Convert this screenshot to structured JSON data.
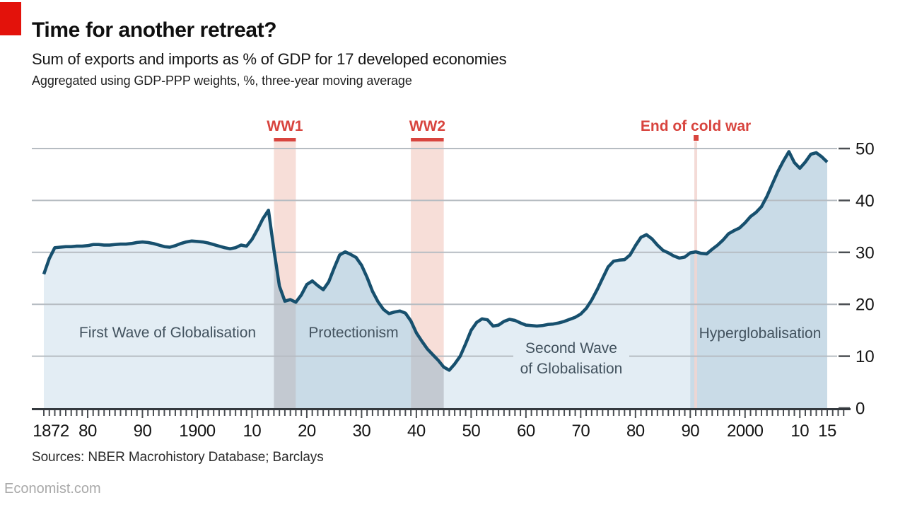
{
  "header": {
    "title": "Time for another retreat?",
    "subtitle": "Sum of exports and imports as % of GDP for 17 developed economies",
    "note": "Aggregated using GDP-PPP weights, %, three-year moving average"
  },
  "footer": {
    "sources": "Sources: NBER Macrohistory Database; Barclays",
    "brand": "Economist.com"
  },
  "chart_data": {
    "type": "area",
    "title": "Time for another retreat?",
    "subtitle": "Sum of exports and imports as % of GDP for 17 developed economies",
    "note": "Aggregated using GDP-PPP weights, %, three-year moving average",
    "xlim": [
      1872,
      2015
    ],
    "ylim": [
      0,
      50
    ],
    "grid": "horizontal",
    "yticks": [
      0,
      10,
      20,
      30,
      40,
      50
    ],
    "y_axis_side": "right",
    "xticks": [
      {
        "year": 1872,
        "label": "1872"
      },
      {
        "year": 1880,
        "label": "80"
      },
      {
        "year": 1890,
        "label": "90"
      },
      {
        "year": 1900,
        "label": "1900"
      },
      {
        "year": 1910,
        "label": "10"
      },
      {
        "year": 1920,
        "label": "20"
      },
      {
        "year": 1930,
        "label": "30"
      },
      {
        "year": 1940,
        "label": "40"
      },
      {
        "year": 1950,
        "label": "50"
      },
      {
        "year": 1960,
        "label": "60"
      },
      {
        "year": 1970,
        "label": "70"
      },
      {
        "year": 1980,
        "label": "80"
      },
      {
        "year": 1990,
        "label": "90"
      },
      {
        "year": 2000,
        "label": "2000"
      },
      {
        "year": 2010,
        "label": "10"
      },
      {
        "year": 2015,
        "label": "15"
      }
    ],
    "series": [
      {
        "name": "Sum of exports and imports as % of GDP (3-year moving average)",
        "start_year": 1872,
        "step": 1,
        "values": [
          25.8,
          28.8,
          30.9,
          31.0,
          31.1,
          31.1,
          31.2,
          31.2,
          31.3,
          31.5,
          31.5,
          31.4,
          31.4,
          31.5,
          31.6,
          31.6,
          31.7,
          31.9,
          32.0,
          31.9,
          31.7,
          31.4,
          31.1,
          31.0,
          31.3,
          31.7,
          32.0,
          32.2,
          32.1,
          32.0,
          31.8,
          31.5,
          31.2,
          30.9,
          30.7,
          30.9,
          31.4,
          31.2,
          32.5,
          34.4,
          36.5,
          38.1,
          30.5,
          23.5,
          20.6,
          20.9,
          20.4,
          21.8,
          23.8,
          24.5,
          23.6,
          22.8,
          24.3,
          27.0,
          29.5,
          30.1,
          29.6,
          29.0,
          27.5,
          25.2,
          22.5,
          20.5,
          19.0,
          18.2,
          18.5,
          18.7,
          18.3,
          16.8,
          14.5,
          12.9,
          11.4,
          10.3,
          9.2,
          7.9,
          7.3,
          8.5,
          10.0,
          12.4,
          15.0,
          16.5,
          17.2,
          17.0,
          15.8,
          16.0,
          16.7,
          17.1,
          16.9,
          16.4,
          16.0,
          15.9,
          15.8,
          15.9,
          16.1,
          16.2,
          16.4,
          16.7,
          17.1,
          17.5,
          18.1,
          19.2,
          20.8,
          22.8,
          25.0,
          27.2,
          28.3,
          28.5,
          28.6,
          29.5,
          31.3,
          32.9,
          33.4,
          32.6,
          31.4,
          30.4,
          29.9,
          29.3,
          28.9,
          29.1,
          29.9,
          30.1,
          29.8,
          29.7,
          30.6,
          31.4,
          32.4,
          33.6,
          34.2,
          34.7,
          35.7,
          36.9,
          37.7,
          38.8,
          40.8,
          43.2,
          45.6,
          47.6,
          49.4,
          47.3,
          46.2,
          47.4,
          48.9,
          49.2,
          48.4,
          47.4
        ]
      }
    ],
    "eras": [
      {
        "id": "first-wave",
        "label": "First Wave of Globalisation",
        "from": 1872,
        "to": 1914,
        "style": "light"
      },
      {
        "id": "ww1",
        "label": "WW1",
        "from": 1914,
        "to": 1918,
        "style": "war"
      },
      {
        "id": "protectionism",
        "label": "Protectionism",
        "from": 1918,
        "to": 1939,
        "style": "medium"
      },
      {
        "id": "ww2",
        "label": "WW2",
        "from": 1939,
        "to": 1945,
        "style": "war"
      },
      {
        "id": "second-wave",
        "label_lines": [
          "Second Wave",
          "of Globalisation"
        ],
        "label": "Second Wave of Globalisation",
        "from": 1945,
        "to": 1990,
        "style": "light"
      },
      {
        "id": "hyper",
        "label": "Hyperglobalisation",
        "from": 1990,
        "to": 2015,
        "style": "medium"
      }
    ],
    "event_line": {
      "label": "End of cold war",
      "year": 1991
    },
    "colors": {
      "background": "#ffffff",
      "accent_red": "#e3120b",
      "annotation_red": "#d8443e",
      "line": "#17506e",
      "fill_light": "#e3edf4",
      "fill_medium": "#c9dbe7",
      "fill_war": "#c3c9d1",
      "war_column_pink": "#f7ded8",
      "event_line_pink": "rgba(242,213,208,0.85)",
      "gridline": "#b6bcc2",
      "axis": "#34393e",
      "tick": "#4a4e52",
      "era_text": "#42525e",
      "axis_label": "#141414"
    }
  }
}
